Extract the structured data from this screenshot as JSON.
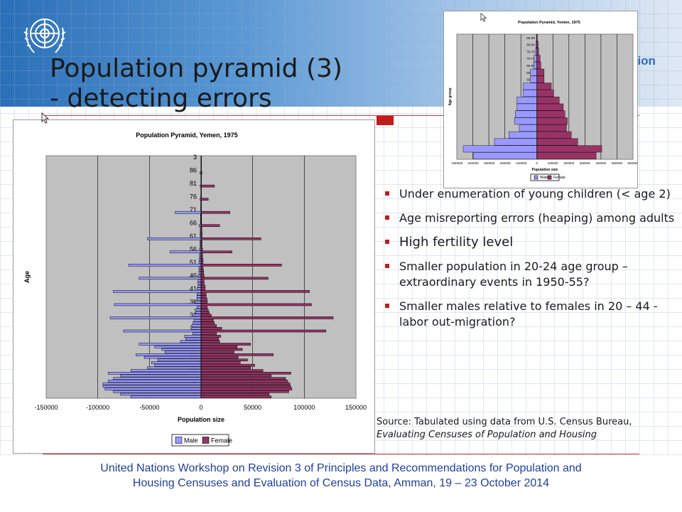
{
  "slide": {
    "title_line1": "Population pyramid (3)",
    "title_line2": "- detecting errors",
    "header_fragment": "sion",
    "bullets": [
      "Under enumeration of young children (< age 2)",
      "Age misreporting errors (heaping) among adults",
      "High fertility level",
      "Smaller population in 20-24 age group – extraordinary events in 1950-55?",
      "Smaller males relative to females in 20 – 44 - labor out-migration?"
    ],
    "source_prefix": "Source: Tabulated using data from U.S. Census Bureau, ",
    "source_title": "Evaluating Censuses of Population and Housing",
    "footer_line1": "United Nations Workshop on  Revision 3 of Principles and Recommendations for Population and",
    "footer_line2": "Housing Censuses and Evaluation of Census Data, Amman, 19 – 23 October 2014",
    "colors": {
      "male": "#9999ff",
      "female": "#993366",
      "plot_bg": "#c0c0c0",
      "accent": "#c41a1a",
      "footer": "#1f3f9e"
    },
    "icons": [
      "un-emblem-icon",
      "mouse-cursor-icon"
    ]
  },
  "chart_data": [
    {
      "type": "bar",
      "orientation": "horizontal",
      "title": "Population Pyramid, Yemen, 1975",
      "xlabel": "Population size",
      "ylabel": "Age",
      "xlim": [
        -150000,
        150000
      ],
      "xticks": [
        -150000,
        -100000,
        -50000,
        0,
        50000,
        100000,
        150000
      ],
      "xtick_labels": [
        "-150000",
        "-100000",
        "-50000",
        "0",
        "50000",
        "100000",
        "150000"
      ],
      "ytick_labels": [
        {
          "age": 1,
          "label": "1"
        },
        {
          "age": 6,
          "label": "6"
        },
        {
          "age": 11,
          "label": "11"
        },
        {
          "age": 16,
          "label": "16"
        },
        {
          "age": 21,
          "label": "21"
        },
        {
          "age": 26,
          "label": "26"
        },
        {
          "age": 31,
          "label": "31"
        },
        {
          "age": 36,
          "label": "36"
        },
        {
          "age": 41,
          "label": "41"
        },
        {
          "age": 46,
          "label": "46"
        },
        {
          "age": 51,
          "label": "51"
        },
        {
          "age": 56,
          "label": "56"
        },
        {
          "age": 61,
          "label": "61"
        },
        {
          "age": 66,
          "label": "66"
        },
        {
          "age": 71,
          "label": "71"
        },
        {
          "age": 76,
          "label": "76"
        },
        {
          "age": 81,
          "label": "81"
        },
        {
          "age": 86,
          "label": "86"
        },
        {
          "age": 91,
          "label": "3"
        }
      ],
      "ages": [
        0,
        1,
        2,
        3,
        4,
        5,
        6,
        7,
        8,
        9,
        10,
        11,
        12,
        13,
        14,
        15,
        16,
        17,
        18,
        19,
        20,
        21,
        22,
        23,
        24,
        25,
        26,
        27,
        28,
        29,
        30,
        31,
        32,
        33,
        34,
        35,
        36,
        37,
        38,
        39,
        40,
        41,
        42,
        43,
        44,
        45,
        46,
        47,
        48,
        49,
        50,
        51,
        52,
        53,
        54,
        55,
        56,
        57,
        58,
        59,
        60,
        61,
        62,
        63,
        64,
        65,
        66,
        67,
        68,
        69,
        70,
        71,
        72,
        73,
        74,
        75,
        76,
        77,
        78,
        79,
        80,
        81,
        82,
        83,
        84,
        85,
        86,
        87,
        88,
        89,
        90,
        91
      ],
      "grid": true,
      "legend_position": "bottom",
      "series": [
        {
          "name": "Male",
          "values": [
            -68000,
            -78000,
            -85000,
            -93000,
            -95000,
            -95000,
            -90000,
            -85000,
            -78000,
            -90000,
            -68000,
            -52000,
            -45000,
            -48000,
            -42000,
            -55000,
            -63000,
            -35000,
            -38000,
            -45000,
            -60000,
            -20000,
            -15000,
            -16000,
            -8000,
            -75000,
            -9000,
            -9000,
            -8000,
            -7000,
            -88000,
            -7000,
            -5000,
            -6000,
            -4000,
            -84000,
            -6000,
            -4000,
            -4000,
            -4000,
            -85000,
            -4000,
            -3000,
            -3000,
            -3000,
            -60000,
            -3000,
            -2000,
            -2000,
            -2000,
            -70000,
            -2000,
            -2000,
            -1500,
            -1500,
            -30000,
            -1500,
            -1000,
            -1000,
            -1000,
            -52000,
            -1000,
            -1000,
            -800,
            -800,
            -2000,
            -600,
            -600,
            -500,
            -500,
            -25000,
            -400,
            -400,
            -300,
            -300,
            -1000,
            -300,
            -200,
            -200,
            -200,
            -1000,
            -200,
            -200,
            -100,
            -100,
            -1000,
            -100,
            -100,
            -100,
            -100,
            -100,
            -100
          ]
        },
        {
          "name": "Female",
          "values": [
            68000,
            66000,
            85000,
            88000,
            87000,
            86000,
            84000,
            82000,
            68000,
            87000,
            60000,
            48000,
            52000,
            38000,
            45000,
            36000,
            70000,
            32000,
            40000,
            35000,
            48000,
            18000,
            17000,
            19000,
            15000,
            121000,
            20000,
            15000,
            13000,
            12000,
            128000,
            10000,
            8000,
            7000,
            6000,
            107000,
            6000,
            6000,
            5000,
            5000,
            105000,
            4000,
            4000,
            3000,
            3000,
            65000,
            3000,
            2500,
            2500,
            2000,
            78000,
            2000,
            2000,
            1500,
            1500,
            30000,
            1500,
            1000,
            1000,
            1000,
            58000,
            1000,
            1000,
            800,
            800,
            18000,
            600,
            600,
            500,
            500,
            28000,
            400,
            400,
            300,
            300,
            7000,
            300,
            200,
            200,
            200,
            13000,
            200,
            200,
            100,
            100,
            1000,
            100,
            100,
            100,
            100,
            100,
            100
          ]
        }
      ]
    },
    {
      "type": "bar",
      "orientation": "horizontal",
      "title": "Population Pyramid, Yemen, 1975",
      "xlabel": "Population size",
      "ylabel": "Age group",
      "xlim": [
        -500000,
        600000
      ],
      "xticks": [
        -500000,
        -400000,
        -300000,
        -200000,
        -100000,
        0,
        100000,
        200000,
        300000,
        400000,
        500000,
        600000
      ],
      "xtick_labels": [
        "-500000",
        "-400000",
        "-300000",
        "-200000",
        "-100000",
        "0",
        "100000",
        "200000",
        "300000",
        "400000",
        "500000",
        "600000"
      ],
      "categories": [
        "0-4",
        "5-9",
        "10-14",
        "15-19",
        "20-24",
        "25-29",
        "30-34",
        "35-39",
        "40-44",
        "45-49",
        "50-54",
        "55-59",
        "60-64",
        "65-69",
        "70-74",
        "75-79",
        "80-84",
        "85-89"
      ],
      "grid": true,
      "legend_position": "bottom",
      "series": [
        {
          "name": "Male",
          "values": [
            -395000,
            -460000,
            -265000,
            -175000,
            -110000,
            -140000,
            -135000,
            -125000,
            -125000,
            -85000,
            -85000,
            -40000,
            -40000,
            -20000,
            -18000,
            -8000,
            -6000,
            -3000
          ]
        },
        {
          "name": "Female",
          "values": [
            370000,
            405000,
            255000,
            215000,
            185000,
            190000,
            175000,
            165000,
            140000,
            105000,
            90000,
            45000,
            45000,
            25000,
            20000,
            11000,
            8000,
            3000
          ]
        }
      ]
    }
  ]
}
